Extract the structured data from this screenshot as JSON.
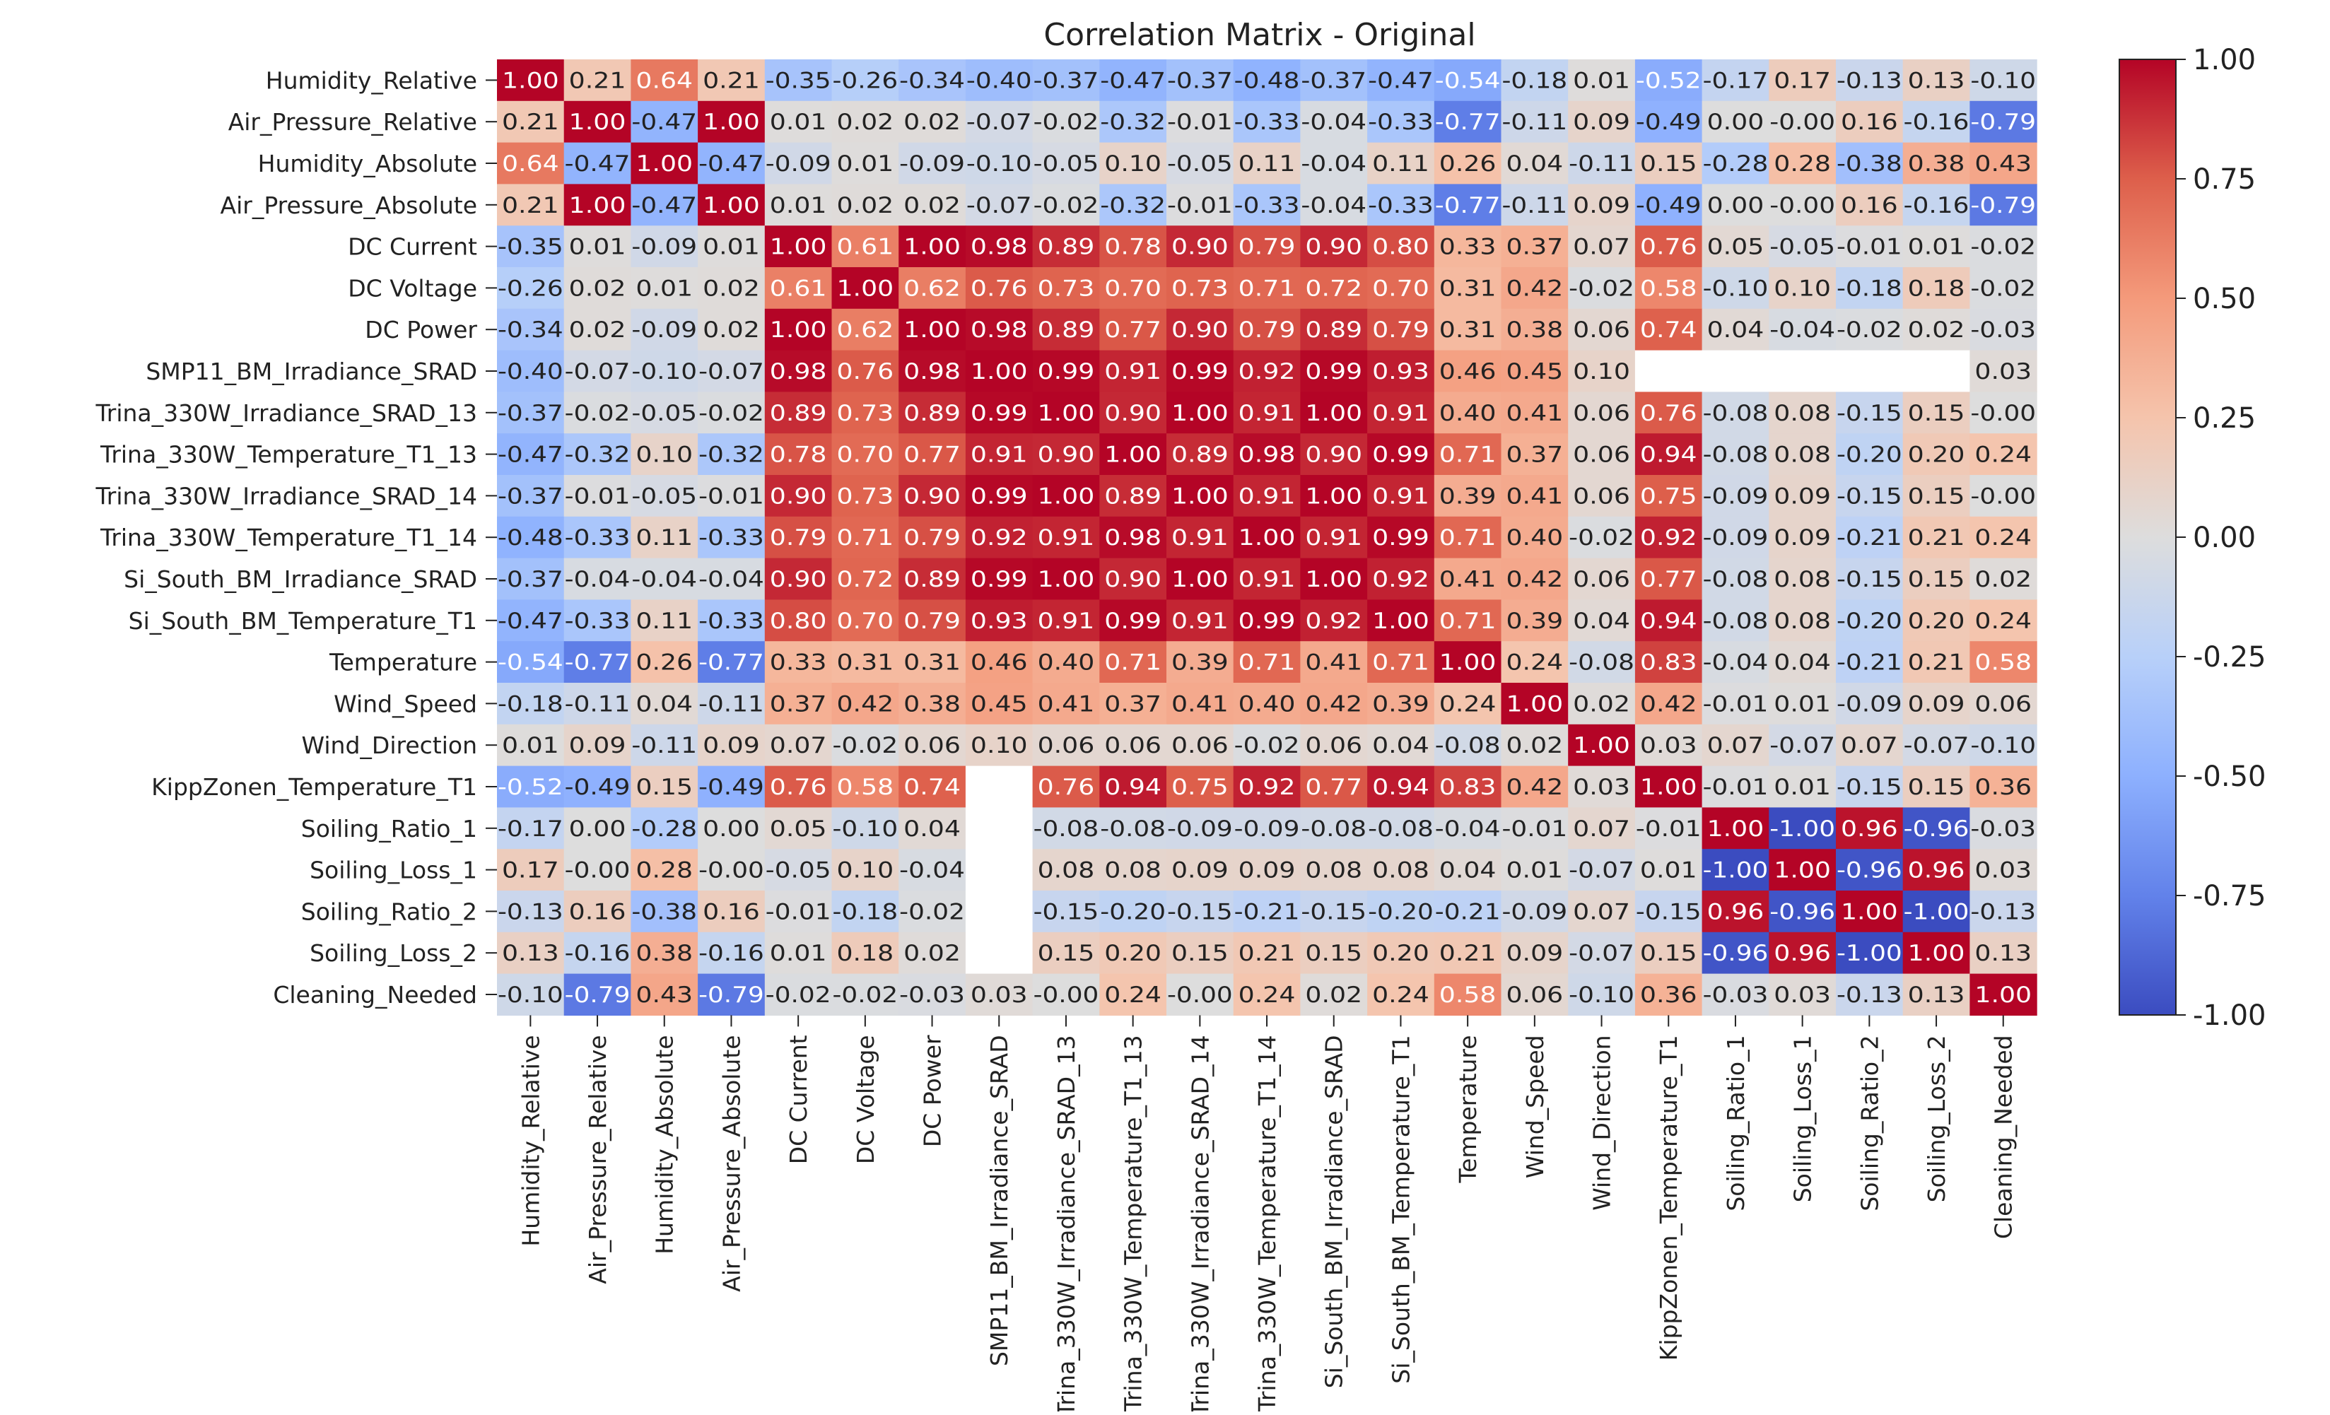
{
  "chart_data": {
    "type": "heatmap",
    "title": "Correlation Matrix - Original",
    "labels": [
      "Humidity_Relative",
      "Air_Pressure_Relative",
      "Humidity_Absolute",
      "Air_Pressure_Absolute",
      "DC Current",
      "DC Voltage",
      "DC Power",
      "SMP11_BM_Irradiance_SRAD",
      "Trina_330W_Irradiance_SRAD_13",
      "Trina_330W_Temperature_T1_13",
      "Trina_330W_Irradiance_SRAD_14",
      "Trina_330W_Temperature_T1_14",
      "Si_South_BM_Irradiance_SRAD",
      "Si_South_BM_Temperature_T1",
      "Temperature",
      "Wind_Speed",
      "Wind_Direction",
      "KippZonen_Temperature_T1",
      "Soiling_Ratio_1",
      "Soiling_Loss_1",
      "Soiling_Ratio_2",
      "Soiling_Loss_2",
      "Cleaning_Needed"
    ],
    "value_labels": [
      [
        "1.00",
        "0.21",
        "0.64",
        "0.21",
        "-0.35",
        "-0.26",
        "-0.34",
        "-0.40",
        "-0.37",
        "-0.47",
        "-0.37",
        "-0.48",
        "-0.37",
        "-0.47",
        "-0.54",
        "-0.18",
        "0.01",
        "-0.52",
        "-0.17",
        "0.17",
        "-0.13",
        "0.13",
        "-0.10"
      ],
      [
        "0.21",
        "1.00",
        "-0.47",
        "1.00",
        "0.01",
        "0.02",
        "0.02",
        "-0.07",
        "-0.02",
        "-0.32",
        "-0.01",
        "-0.33",
        "-0.04",
        "-0.33",
        "-0.77",
        "-0.11",
        "0.09",
        "-0.49",
        "0.00",
        "-0.00",
        "0.16",
        "-0.16",
        "-0.79"
      ],
      [
        "0.64",
        "-0.47",
        "1.00",
        "-0.47",
        "-0.09",
        "0.01",
        "-0.09",
        "-0.10",
        "-0.05",
        "0.10",
        "-0.05",
        "0.11",
        "-0.04",
        "0.11",
        "0.26",
        "0.04",
        "-0.11",
        "0.15",
        "-0.28",
        "0.28",
        "-0.38",
        "0.38",
        "0.43"
      ],
      [
        "0.21",
        "1.00",
        "-0.47",
        "1.00",
        "0.01",
        "0.02",
        "0.02",
        "-0.07",
        "-0.02",
        "-0.32",
        "-0.01",
        "-0.33",
        "-0.04",
        "-0.33",
        "-0.77",
        "-0.11",
        "0.09",
        "-0.49",
        "0.00",
        "-0.00",
        "0.16",
        "-0.16",
        "-0.79"
      ],
      [
        "-0.35",
        "0.01",
        "-0.09",
        "0.01",
        "1.00",
        "0.61",
        "1.00",
        "0.98",
        "0.89",
        "0.78",
        "0.90",
        "0.79",
        "0.90",
        "0.80",
        "0.33",
        "0.37",
        "0.07",
        "0.76",
        "0.05",
        "-0.05",
        "-0.01",
        "0.01",
        "-0.02"
      ],
      [
        "-0.26",
        "0.02",
        "0.01",
        "0.02",
        "0.61",
        "1.00",
        "0.62",
        "0.76",
        "0.73",
        "0.70",
        "0.73",
        "0.71",
        "0.72",
        "0.70",
        "0.31",
        "0.42",
        "-0.02",
        "0.58",
        "-0.10",
        "0.10",
        "-0.18",
        "0.18",
        "-0.02"
      ],
      [
        "-0.34",
        "0.02",
        "-0.09",
        "0.02",
        "1.00",
        "0.62",
        "1.00",
        "0.98",
        "0.89",
        "0.77",
        "0.90",
        "0.79",
        "0.89",
        "0.79",
        "0.31",
        "0.38",
        "0.06",
        "0.74",
        "0.04",
        "-0.04",
        "-0.02",
        "0.02",
        "-0.03"
      ],
      [
        "-0.40",
        "-0.07",
        "-0.10",
        "-0.07",
        "0.98",
        "0.76",
        "0.98",
        "1.00",
        "0.99",
        "0.91",
        "0.99",
        "0.92",
        "0.99",
        "0.93",
        "0.46",
        "0.45",
        "0.10",
        null,
        null,
        null,
        null,
        null,
        "0.03"
      ],
      [
        "-0.37",
        "-0.02",
        "-0.05",
        "-0.02",
        "0.89",
        "0.73",
        "0.89",
        "0.99",
        "1.00",
        "0.90",
        "1.00",
        "0.91",
        "1.00",
        "0.91",
        "0.40",
        "0.41",
        "0.06",
        "0.76",
        "-0.08",
        "0.08",
        "-0.15",
        "0.15",
        "-0.00"
      ],
      [
        "-0.47",
        "-0.32",
        "0.10",
        "-0.32",
        "0.78",
        "0.70",
        "0.77",
        "0.91",
        "0.90",
        "1.00",
        "0.89",
        "0.98",
        "0.90",
        "0.99",
        "0.71",
        "0.37",
        "0.06",
        "0.94",
        "-0.08",
        "0.08",
        "-0.20",
        "0.20",
        "0.24"
      ],
      [
        "-0.37",
        "-0.01",
        "-0.05",
        "-0.01",
        "0.90",
        "0.73",
        "0.90",
        "0.99",
        "1.00",
        "0.89",
        "1.00",
        "0.91",
        "1.00",
        "0.91",
        "0.39",
        "0.41",
        "0.06",
        "0.75",
        "-0.09",
        "0.09",
        "-0.15",
        "0.15",
        "-0.00"
      ],
      [
        "-0.48",
        "-0.33",
        "0.11",
        "-0.33",
        "0.79",
        "0.71",
        "0.79",
        "0.92",
        "0.91",
        "0.98",
        "0.91",
        "1.00",
        "0.91",
        "0.99",
        "0.71",
        "0.40",
        "-0.02",
        "0.92",
        "-0.09",
        "0.09",
        "-0.21",
        "0.21",
        "0.24"
      ],
      [
        "-0.37",
        "-0.04",
        "-0.04",
        "-0.04",
        "0.90",
        "0.72",
        "0.89",
        "0.99",
        "1.00",
        "0.90",
        "1.00",
        "0.91",
        "1.00",
        "0.92",
        "0.41",
        "0.42",
        "0.06",
        "0.77",
        "-0.08",
        "0.08",
        "-0.15",
        "0.15",
        "0.02"
      ],
      [
        "-0.47",
        "-0.33",
        "0.11",
        "-0.33",
        "0.80",
        "0.70",
        "0.79",
        "0.93",
        "0.91",
        "0.99",
        "0.91",
        "0.99",
        "0.92",
        "1.00",
        "0.71",
        "0.39",
        "0.04",
        "0.94",
        "-0.08",
        "0.08",
        "-0.20",
        "0.20",
        "0.24"
      ],
      [
        "-0.54",
        "-0.77",
        "0.26",
        "-0.77",
        "0.33",
        "0.31",
        "0.31",
        "0.46",
        "0.40",
        "0.71",
        "0.39",
        "0.71",
        "0.41",
        "0.71",
        "1.00",
        "0.24",
        "-0.08",
        "0.83",
        "-0.04",
        "0.04",
        "-0.21",
        "0.21",
        "0.58"
      ],
      [
        "-0.18",
        "-0.11",
        "0.04",
        "-0.11",
        "0.37",
        "0.42",
        "0.38",
        "0.45",
        "0.41",
        "0.37",
        "0.41",
        "0.40",
        "0.42",
        "0.39",
        "0.24",
        "1.00",
        "0.02",
        "0.42",
        "-0.01",
        "0.01",
        "-0.09",
        "0.09",
        "0.06"
      ],
      [
        "0.01",
        "0.09",
        "-0.11",
        "0.09",
        "0.07",
        "-0.02",
        "0.06",
        "0.10",
        "0.06",
        "0.06",
        "0.06",
        "-0.02",
        "0.06",
        "0.04",
        "-0.08",
        "0.02",
        "1.00",
        "0.03",
        "0.07",
        "-0.07",
        "0.07",
        "-0.07",
        "-0.10"
      ],
      [
        "-0.52",
        "-0.49",
        "0.15",
        "-0.49",
        "0.76",
        "0.58",
        "0.74",
        null,
        "0.76",
        "0.94",
        "0.75",
        "0.92",
        "0.77",
        "0.94",
        "0.83",
        "0.42",
        "0.03",
        "1.00",
        "-0.01",
        "0.01",
        "-0.15",
        "0.15",
        "0.36"
      ],
      [
        "-0.17",
        "0.00",
        "-0.28",
        "0.00",
        "0.05",
        "-0.10",
        "0.04",
        null,
        "-0.08",
        "-0.08",
        "-0.09",
        "-0.09",
        "-0.08",
        "-0.08",
        "-0.04",
        "-0.01",
        "0.07",
        "-0.01",
        "1.00",
        "-1.00",
        "0.96",
        "-0.96",
        "-0.03"
      ],
      [
        "0.17",
        "-0.00",
        "0.28",
        "-0.00",
        "-0.05",
        "0.10",
        "-0.04",
        null,
        "0.08",
        "0.08",
        "0.09",
        "0.09",
        "0.08",
        "0.08",
        "0.04",
        "0.01",
        "-0.07",
        "0.01",
        "-1.00",
        "1.00",
        "-0.96",
        "0.96",
        "0.03"
      ],
      [
        "-0.13",
        "0.16",
        "-0.38",
        "0.16",
        "-0.01",
        "-0.18",
        "-0.02",
        null,
        "-0.15",
        "-0.20",
        "-0.15",
        "-0.21",
        "-0.15",
        "-0.20",
        "-0.21",
        "-0.09",
        "0.07",
        "-0.15",
        "0.96",
        "-0.96",
        "1.00",
        "-1.00",
        "-0.13"
      ],
      [
        "0.13",
        "-0.16",
        "0.38",
        "-0.16",
        "0.01",
        "0.18",
        "0.02",
        null,
        "0.15",
        "0.20",
        "0.15",
        "0.21",
        "0.15",
        "0.20",
        "0.21",
        "0.09",
        "-0.07",
        "0.15",
        "-0.96",
        "0.96",
        "-1.00",
        "1.00",
        "0.13"
      ],
      [
        "-0.10",
        "-0.79",
        "0.43",
        "-0.79",
        "-0.02",
        "-0.02",
        "-0.03",
        "0.03",
        "-0.00",
        "0.24",
        "-0.00",
        "0.24",
        "0.02",
        "0.24",
        "0.58",
        "0.06",
        "-0.10",
        "0.36",
        "-0.03",
        "0.03",
        "-0.13",
        "0.13",
        "1.00"
      ]
    ],
    "colorbar": {
      "vmin": -1.0,
      "vmax": 1.0,
      "tick_labels": [
        "1.00",
        "0.75",
        "0.50",
        "0.25",
        "0.00",
        "-0.25",
        "-0.50",
        "-0.75",
        "-1.00"
      ],
      "colormap": "coolwarm",
      "colors": [
        "#3b4cc0",
        "#dddddd",
        "#b40426"
      ]
    }
  }
}
